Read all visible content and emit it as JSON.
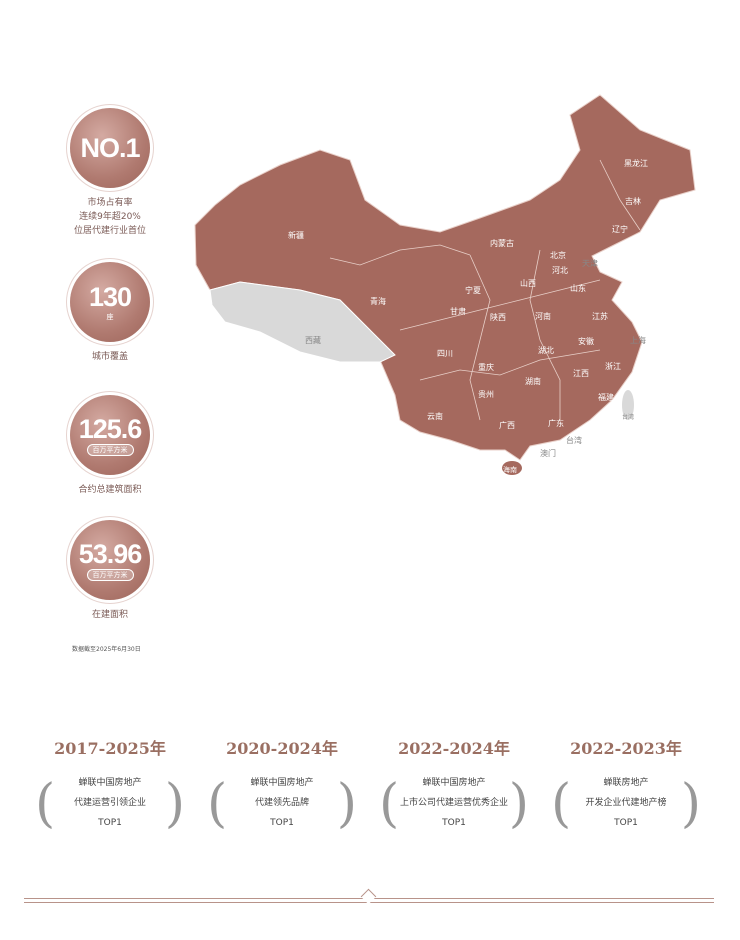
{
  "colors": {
    "map_fill": "#a5695e",
    "tibet_fill": "#d9d9d9",
    "accent": "#9a6f62"
  },
  "stats": [
    {
      "value": "NO.1",
      "unit": "",
      "desc": [
        "市场占有率",
        "连续9年超20%",
        "位居代建行业首位"
      ]
    },
    {
      "value": "130",
      "unit": "座",
      "desc": [
        "城市覆盖"
      ]
    },
    {
      "value": "125.6",
      "unit": "百万平方米",
      "desc": [
        "合约总建筑面积"
      ]
    },
    {
      "value": "53.96",
      "unit": "百万平方米",
      "desc": [
        "在建面积"
      ]
    }
  ],
  "note": "数据截至2025年6月30日",
  "map_labels": {
    "heilongjiang": "黑龙江",
    "jilin": "吉林",
    "liaoning": "辽宁",
    "xinjiang": "新疆",
    "neimenggu": "内蒙古",
    "beijing": "北京",
    "tianjin": "天津",
    "hebei": "河北",
    "shanxi": "山西",
    "shandong": "山东",
    "ningxia": "宁夏",
    "qinghai": "青海",
    "gansu": "甘肃",
    "shaanxi": "陕西",
    "henan": "河南",
    "jiangsu": "江苏",
    "xizang": "西藏",
    "sichuan": "四川",
    "hubei": "湖北",
    "anhui": "安徽",
    "shanghai": "上海",
    "chongqing": "重庆",
    "zhejiang": "浙江",
    "jiangxi": "江西",
    "hunan": "湖南",
    "guizhou": "贵州",
    "fujian": "福建",
    "yunnan": "云南",
    "guangxi": "广西",
    "guangdong": "广东",
    "taiwan": "台湾",
    "hk": "台湾",
    "macau": "澳门",
    "hainan": "海南"
  },
  "awards": [
    {
      "year": "2017-2025年",
      "lines": [
        "蝉联中国房地产",
        "代建运营引领企业",
        "TOP1"
      ]
    },
    {
      "year": "2020-2024年",
      "lines": [
        "蝉联中国房地产",
        "代建领先品牌",
        "TOP1"
      ]
    },
    {
      "year": "2022-2024年",
      "lines": [
        "蝉联中国房地产",
        "上市公司代建运营优秀企业",
        "TOP1"
      ]
    },
    {
      "year": "2022-2023年",
      "lines": [
        "蝉联房地产",
        "开发企业代建地产榜",
        "TOP1"
      ]
    }
  ]
}
